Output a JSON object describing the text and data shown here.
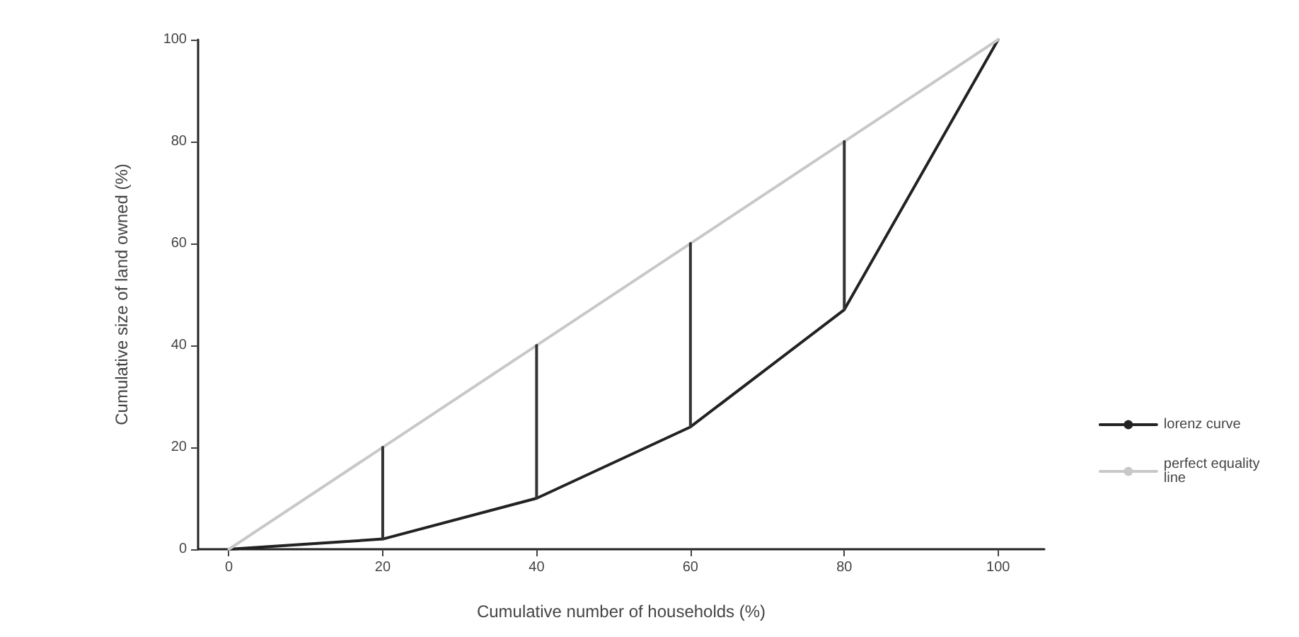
{
  "chart_data": {
    "type": "line",
    "xlabel": "Cumulative number of households (%)",
    "ylabel": "Cumulative size of land owned (%)",
    "xlim": [
      -4,
      106
    ],
    "xticks": [
      0,
      20,
      40,
      60,
      80,
      100
    ],
    "ylim": [
      0,
      100
    ],
    "yticks": [
      0,
      20,
      40,
      60,
      80,
      100
    ],
    "grid": false,
    "legend": "right",
    "marker": "none",
    "line_style": "solid",
    "series": [
      {
        "name": "lorenz curve",
        "color": "#222222",
        "x": [
          0,
          20,
          40,
          60,
          80,
          100
        ],
        "values": [
          0,
          2,
          10,
          24,
          47,
          100
        ]
      },
      {
        "name": "perfect equality line",
        "color": "#c8c8c8",
        "x": [
          0,
          100
        ],
        "values": [
          0,
          100
        ]
      },
      {
        "color": "#333333",
        "x": [
          20,
          20
        ],
        "values": [
          2,
          20
        ]
      },
      {
        "color": "#333333",
        "x": [
          40,
          40
        ],
        "values": [
          10,
          40
        ]
      },
      {
        "color": "#333333",
        "x": [
          60,
          60
        ],
        "values": [
          24,
          60
        ]
      },
      {
        "color": "#333333",
        "x": [
          80,
          80
        ],
        "values": [
          47,
          80
        ]
      }
    ]
  }
}
